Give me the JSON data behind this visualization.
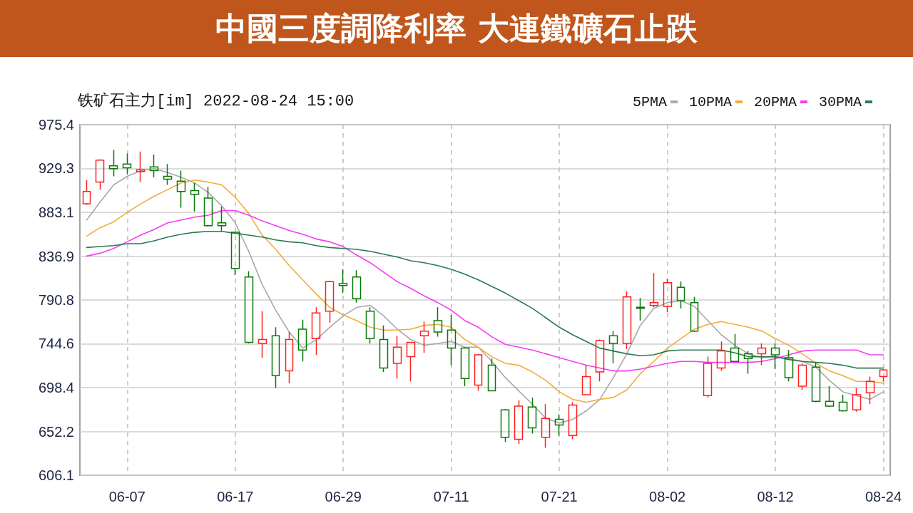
{
  "chart_data": {
    "type": "candlestick",
    "title": "中國三度調降利率 大連鐵礦石止跌",
    "subtitle": "铁矿石主力[im] 2022-08-24 15:00",
    "categories": [
      null,
      null,
      null,
      "06-07",
      null,
      null,
      null,
      null,
      null,
      null,
      null,
      "06-17",
      null,
      null,
      null,
      null,
      null,
      null,
      null,
      "06-29",
      null,
      null,
      null,
      null,
      null,
      null,
      null,
      "07-11",
      null,
      null,
      null,
      null,
      null,
      null,
      null,
      "07-21",
      null,
      null,
      null,
      null,
      null,
      null,
      null,
      "08-02",
      null,
      null,
      null,
      null,
      null,
      null,
      null,
      "08-12",
      null,
      null,
      null,
      null,
      null,
      null,
      null,
      "08-24"
    ],
    "ohlc": [
      [
        892,
        917,
        891,
        905
      ],
      [
        915,
        939,
        907,
        938
      ],
      [
        932,
        949,
        921,
        929
      ],
      [
        934,
        945,
        923,
        930
      ],
      [
        926,
        947,
        915,
        928
      ],
      [
        931,
        944,
        920,
        927
      ],
      [
        921,
        934,
        912,
        918
      ],
      [
        916,
        927,
        888,
        905
      ],
      [
        906,
        914,
        884,
        902
      ],
      [
        898,
        910,
        868,
        869
      ],
      [
        872,
        889,
        863,
        869
      ],
      [
        862,
        862,
        817,
        824
      ],
      [
        815,
        821,
        745,
        746
      ],
      [
        745,
        779,
        730,
        749
      ],
      [
        753,
        762,
        698,
        711
      ],
      [
        716,
        757,
        703,
        749
      ],
      [
        760,
        770,
        726,
        738
      ],
      [
        750,
        783,
        733,
        777
      ],
      [
        779,
        811,
        767,
        810
      ],
      [
        808,
        823,
        798,
        806
      ],
      [
        815,
        822,
        788,
        792
      ],
      [
        779,
        783,
        745,
        750
      ],
      [
        749,
        764,
        715,
        719
      ],
      [
        724,
        753,
        708,
        741
      ],
      [
        731,
        746,
        705,
        746
      ],
      [
        753,
        768,
        735,
        758
      ],
      [
        769,
        783,
        752,
        757
      ],
      [
        759,
        775,
        722,
        740
      ],
      [
        740,
        741,
        700,
        708
      ],
      [
        701,
        734,
        695,
        733
      ],
      [
        722,
        729,
        695,
        695
      ],
      [
        675,
        676,
        641,
        646
      ],
      [
        644,
        685,
        639,
        679
      ],
      [
        678,
        688,
        650,
        656
      ],
      [
        646,
        681,
        635,
        666
      ],
      [
        665,
        670,
        648,
        659
      ],
      [
        648,
        683,
        644,
        680
      ],
      [
        691,
        722,
        691,
        710
      ],
      [
        715,
        749,
        705,
        748
      ],
      [
        753,
        758,
        724,
        745
      ],
      [
        745,
        800,
        739,
        794
      ],
      [
        783,
        793,
        769,
        782
      ],
      [
        785,
        819,
        783,
        788
      ],
      [
        784,
        813,
        778,
        809
      ],
      [
        804,
        810,
        782,
        790
      ],
      [
        788,
        794,
        757,
        758
      ],
      [
        690,
        731,
        688,
        724
      ],
      [
        719,
        747,
        716,
        737
      ],
      [
        740,
        755,
        726,
        726
      ],
      [
        734,
        737,
        713,
        729
      ],
      [
        734,
        745,
        722,
        740
      ],
      [
        740,
        745,
        718,
        733
      ],
      [
        730,
        738,
        705,
        709
      ],
      [
        700,
        724,
        696,
        722
      ],
      [
        720,
        725,
        683,
        684
      ],
      [
        684,
        700,
        678,
        679
      ],
      [
        683,
        691,
        673,
        674
      ],
      [
        675,
        698,
        673,
        691
      ],
      [
        693,
        710,
        681,
        705
      ],
      [
        710,
        718,
        705,
        717
      ]
    ],
    "colors": [
      "#ff2020",
      "#ff2020",
      "#087a08",
      "#087a08",
      "#ff2020",
      "#087a08",
      "#087a08",
      "#087a08",
      "#087a08",
      "#087a08",
      "#087a08",
      "#087a08",
      "#087a08",
      "#ff2020",
      "#087a08",
      "#ff2020",
      "#087a08",
      "#ff2020",
      "#ff2020",
      "#087a08",
      "#087a08",
      "#087a08",
      "#087a08",
      "#ff2020",
      "#ff2020",
      "#ff2020",
      "#087a08",
      "#087a08",
      "#087a08",
      "#ff2020",
      "#087a08",
      "#087a08",
      "#ff2020",
      "#087a08",
      "#ff2020",
      "#087a08",
      "#ff2020",
      "#ff2020",
      "#ff2020",
      "#087a08",
      "#ff2020",
      "#087a08",
      "#ff2020",
      "#ff2020",
      "#087a08",
      "#087a08",
      "#ff2020",
      "#ff2020",
      "#087a08",
      "#087a08",
      "#ff2020",
      "#087a08",
      "#087a08",
      "#ff2020",
      "#087a08",
      "#087a08",
      "#087a08",
      "#ff2020",
      "#ff2020",
      "#ff2020"
    ],
    "series": [
      {
        "name": "5PMA",
        "type": "line",
        "color": "#a8a8a8",
        "values": [
          875,
          894,
          912,
          921,
          927,
          929,
          925,
          920,
          914,
          904,
          890,
          872,
          842,
          807,
          780,
          757,
          740,
          749,
          762,
          774,
          783,
          785,
          774,
          760,
          749,
          743,
          745,
          747,
          741,
          741,
          726,
          709,
          695,
          681,
          666,
          661,
          665,
          674,
          686,
          709,
          734,
          764,
          782,
          788,
          790,
          784,
          769,
          754,
          743,
          734,
          730,
          731,
          729,
          726,
          720,
          706,
          694,
          690,
          686,
          694
        ]
      },
      {
        "name": "10PMA",
        "type": "line",
        "color": "#f2ac3a",
        "values": [
          858,
          867,
          873,
          883,
          892,
          900,
          907,
          914,
          917,
          915,
          912,
          899,
          882,
          859,
          844,
          827,
          812,
          797,
          783,
          775,
          769,
          762,
          759,
          759,
          760,
          764,
          765,
          762,
          749,
          741,
          731,
          724,
          722,
          715,
          706,
          694,
          686,
          683,
          686,
          688,
          696,
          713,
          726,
          740,
          750,
          760,
          765,
          768,
          765,
          762,
          758,
          750,
          743,
          734,
          724,
          716,
          711,
          705,
          705,
          703
        ]
      },
      {
        "name": "20PMA",
        "type": "line",
        "color": "#f53cf5",
        "values": [
          837,
          840,
          845,
          852,
          859,
          865,
          872,
          875,
          878,
          880,
          885,
          885,
          880,
          874,
          869,
          864,
          860,
          855,
          852,
          847,
          838,
          830,
          820,
          810,
          803,
          795,
          788,
          780,
          769,
          762,
          752,
          744,
          741,
          738,
          734,
          730,
          726,
          722,
          719,
          716,
          716,
          718,
          721,
          724,
          726,
          726,
          725,
          725,
          725,
          725,
          726,
          729,
          733,
          737,
          738,
          738,
          738,
          738,
          733,
          733
        ]
      },
      {
        "name": "30PMA",
        "type": "line",
        "color": "#2c7a4e",
        "values": [
          846,
          847,
          848,
          850,
          850,
          853,
          857,
          860,
          862,
          863,
          863,
          861,
          859,
          857,
          854,
          852,
          851,
          848,
          846,
          845,
          844,
          842,
          839,
          836,
          832,
          830,
          827,
          823,
          818,
          812,
          805,
          798,
          790,
          782,
          772,
          762,
          754,
          747,
          740,
          737,
          734,
          732,
          733,
          737,
          738,
          738,
          738,
          738,
          735,
          731,
          731,
          731,
          728,
          726,
          725,
          724,
          722,
          719,
          719,
          719
        ]
      }
    ],
    "ylim": [
      606.1,
      975.4
    ],
    "yticks": [
      606.1,
      652.2,
      698.4,
      744.6,
      790.8,
      836.9,
      883.1,
      929.3,
      975.4
    ],
    "grid": true,
    "legend": "top right"
  }
}
